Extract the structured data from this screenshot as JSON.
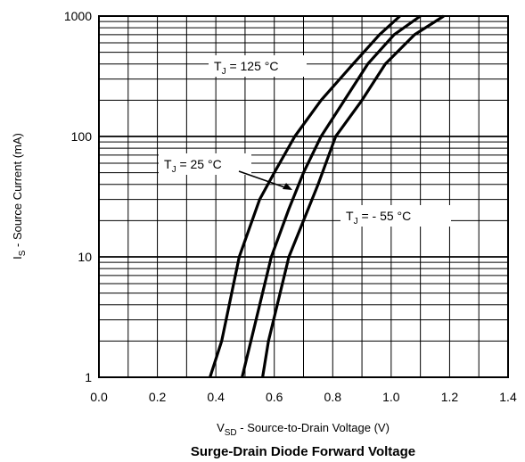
{
  "chart_data": {
    "type": "line",
    "title": "Surge-Drain Diode Forward Voltage",
    "xlabel": {
      "main": "V",
      "sub": "SD",
      "rest": " - Source-to-Drain Voltage (V)"
    },
    "ylabel": {
      "main": "I",
      "sub": "S",
      "rest": " - Source Current (mA)"
    },
    "xlim": [
      0.0,
      1.4
    ],
    "ylim": [
      1,
      1000
    ],
    "yscale": "log",
    "grid": true,
    "x_ticks": [
      "0.0",
      "0.2",
      "0.4",
      "0.6",
      "0.8",
      "1.0",
      "1.2",
      "1.4"
    ],
    "y_ticks": [
      "1",
      "10",
      "100",
      "1000"
    ],
    "series": [
      {
        "name": "T_J = 125 °C",
        "label_main": "T",
        "label_sub": "J",
        "label_rest": " = 125 °C",
        "points": [
          [
            0.38,
            1
          ],
          [
            0.42,
            2
          ],
          [
            0.48,
            10
          ],
          [
            0.55,
            30
          ],
          [
            0.6,
            50
          ],
          [
            0.67,
            100
          ],
          [
            0.76,
            200
          ],
          [
            0.87,
            400
          ],
          [
            0.96,
            700
          ],
          [
            1.03,
            1000
          ]
        ]
      },
      {
        "name": "T_J = 25 °C",
        "label_main": "T",
        "label_sub": "J",
        "label_rest": " = 25 °C",
        "points": [
          [
            0.49,
            1
          ],
          [
            0.52,
            2
          ],
          [
            0.59,
            10
          ],
          [
            0.65,
            25
          ],
          [
            0.7,
            50
          ],
          [
            0.76,
            100
          ],
          [
            0.84,
            200
          ],
          [
            0.92,
            400
          ],
          [
            1.01,
            700
          ],
          [
            1.1,
            1000
          ]
        ]
      },
      {
        "name": "T_J = - 55 °C",
        "label_main": "T",
        "label_sub": "J",
        "label_rest": " = -  55 °C",
        "points": [
          [
            0.56,
            1
          ],
          [
            0.58,
            2
          ],
          [
            0.65,
            10
          ],
          [
            0.7,
            20
          ],
          [
            0.75,
            40
          ],
          [
            0.81,
            100
          ],
          [
            0.9,
            200
          ],
          [
            0.98,
            400
          ],
          [
            1.08,
            700
          ],
          [
            1.18,
            1000
          ]
        ]
      }
    ]
  }
}
